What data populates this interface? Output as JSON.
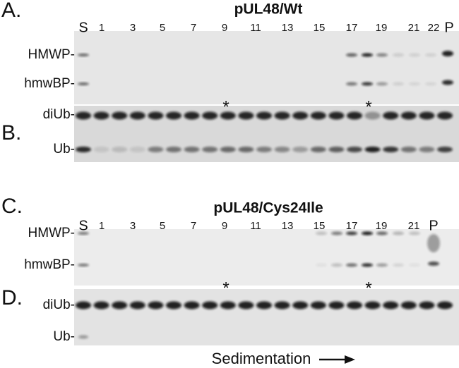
{
  "panels": [
    {
      "letter": "A.",
      "title": "pUL48/Wt",
      "lanes": [
        "S",
        "1",
        "3",
        "5",
        "7",
        "9",
        "11",
        "13",
        "15",
        "17",
        "19",
        "21",
        "22",
        "P"
      ],
      "bands": [
        "HMWP-",
        "hmwBP-"
      ]
    },
    {
      "letter": "B.",
      "bands": [
        "diUb-",
        "Ub-"
      ],
      "asterisks": [
        "*",
        "*"
      ]
    },
    {
      "letter": "C.",
      "title": "pUL48/Cys24Ile",
      "lanes": [
        "S",
        "1",
        "3",
        "5",
        "7",
        "9",
        "11",
        "13",
        "15",
        "17",
        "19",
        "21",
        "P"
      ],
      "bands": [
        "HMWP-",
        "hmwBP-"
      ]
    },
    {
      "letter": "D.",
      "bands": [
        "diUb-",
        "Ub-"
      ],
      "asterisks": [
        "*",
        "*"
      ]
    }
  ],
  "footer": "Sedimentation"
}
